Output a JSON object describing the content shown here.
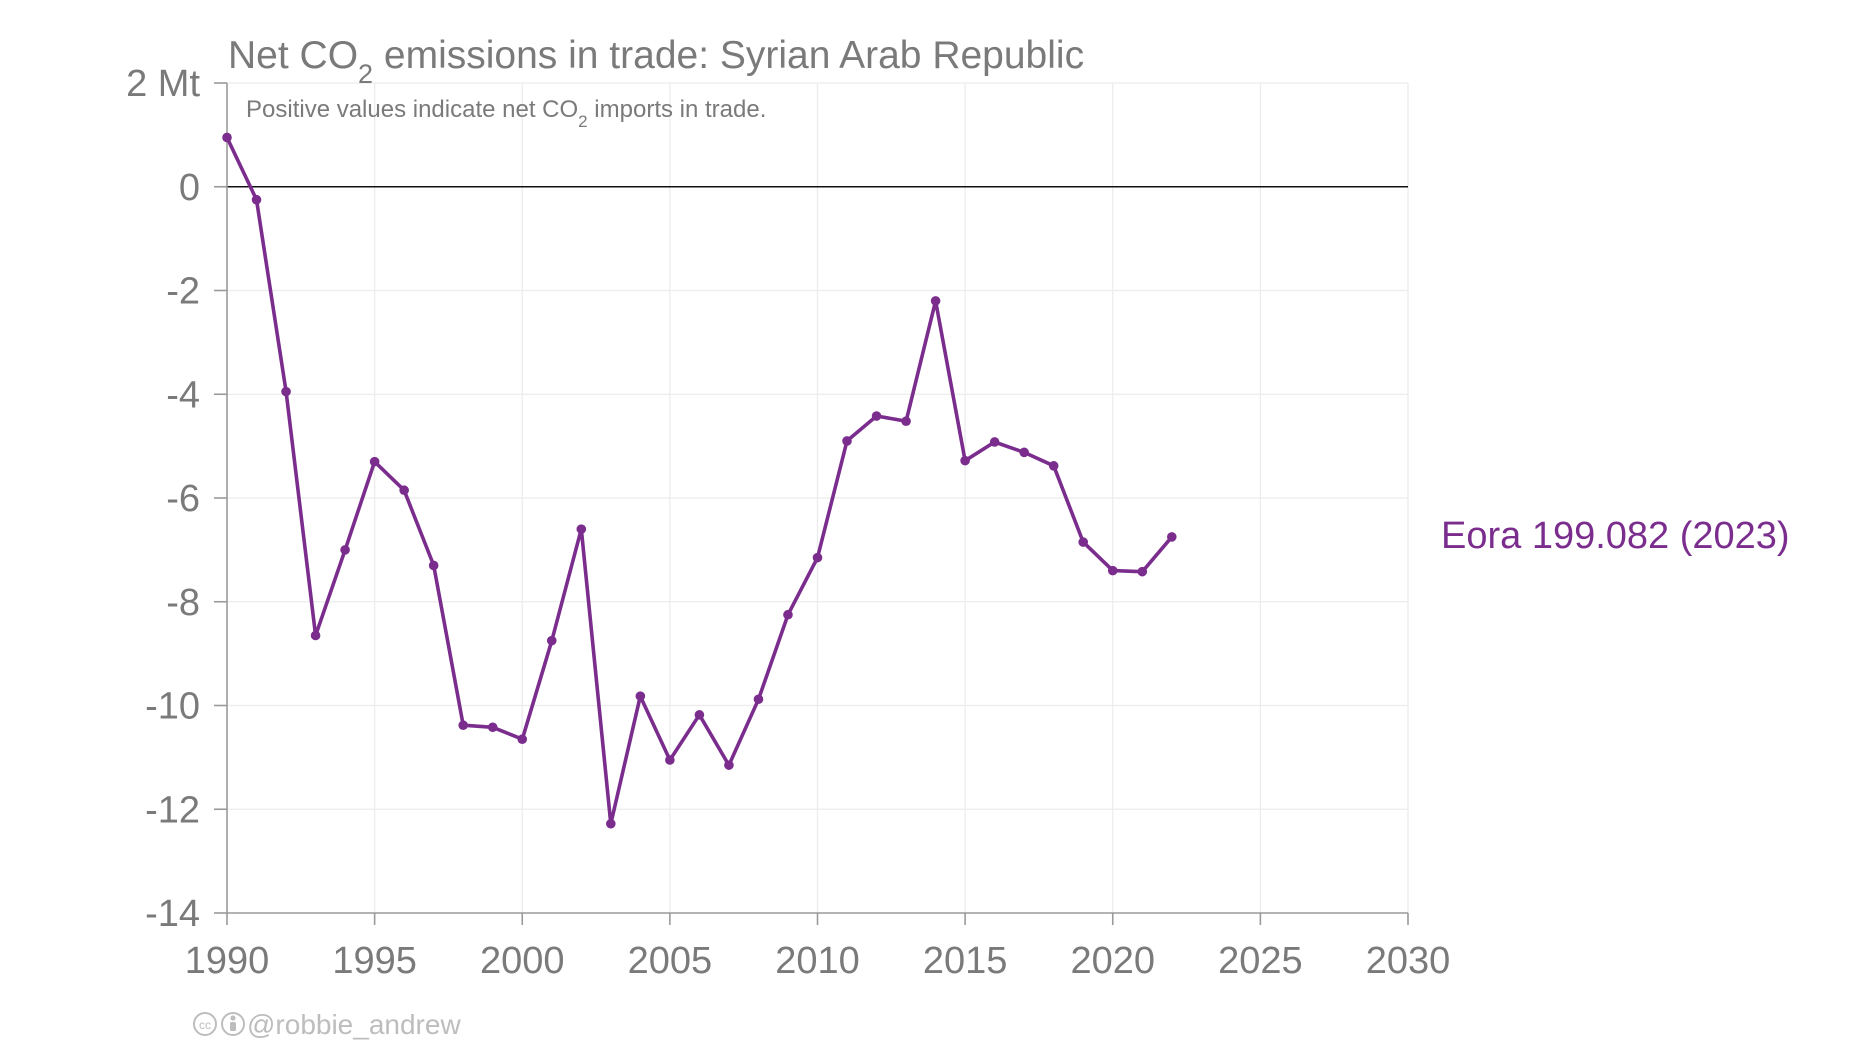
{
  "chart_data": {
    "type": "line",
    "title_parts": {
      "pre": "Net CO",
      "sub": "2",
      "post": " emissions in trade: Syrian Arab Republic"
    },
    "subtitle_parts": {
      "pre": "Positive values indicate net CO",
      "sub": "2",
      "post": " imports in trade."
    },
    "xlabel": "",
    "ylabel": "",
    "y_unit": "Mt",
    "xlim": [
      1990,
      2030
    ],
    "ylim": [
      -14,
      2
    ],
    "x_ticks": [
      1990,
      1995,
      2000,
      2005,
      2010,
      2015,
      2020,
      2025,
      2030
    ],
    "x_tick_labels": [
      "1990",
      "1995",
      "2000",
      "2005",
      "2010",
      "2015",
      "2020",
      "2025",
      "2030"
    ],
    "y_ticks": [
      2,
      0,
      -2,
      -4,
      -6,
      -8,
      -10,
      -12,
      -14
    ],
    "y_tick_labels": [
      "2 Mt",
      "0",
      "-2",
      "-4",
      "-6",
      "-8",
      "-10",
      "-12",
      "-14"
    ],
    "grid": true,
    "series": [
      {
        "name": "Eora 199.082 (2023)",
        "color": "#7b2d8e",
        "x": [
          1990,
          1991,
          1992,
          1993,
          1994,
          1995,
          1996,
          1997,
          1998,
          1999,
          2000,
          2001,
          2002,
          2003,
          2004,
          2005,
          2006,
          2007,
          2008,
          2009,
          2010,
          2011,
          2012,
          2013,
          2014,
          2015,
          2016,
          2017,
          2018,
          2019,
          2020,
          2021,
          2022
        ],
        "y": [
          0.95,
          -0.25,
          -3.95,
          -8.65,
          -7.0,
          -5.3,
          -5.85,
          -7.3,
          -10.38,
          -10.42,
          -10.65,
          -8.75,
          -6.6,
          -12.28,
          -9.82,
          -11.05,
          -10.18,
          -11.15,
          -9.88,
          -8.25,
          -7.15,
          -4.9,
          -4.42,
          -4.52,
          -2.2,
          -5.28,
          -4.92,
          -5.12,
          -5.38,
          -6.85,
          -7.4,
          -7.42,
          -6.75
        ]
      }
    ]
  },
  "credit": {
    "icons": [
      "creative-commons-icon",
      "attribution-icon"
    ],
    "handle": "@robbie_andrew"
  }
}
